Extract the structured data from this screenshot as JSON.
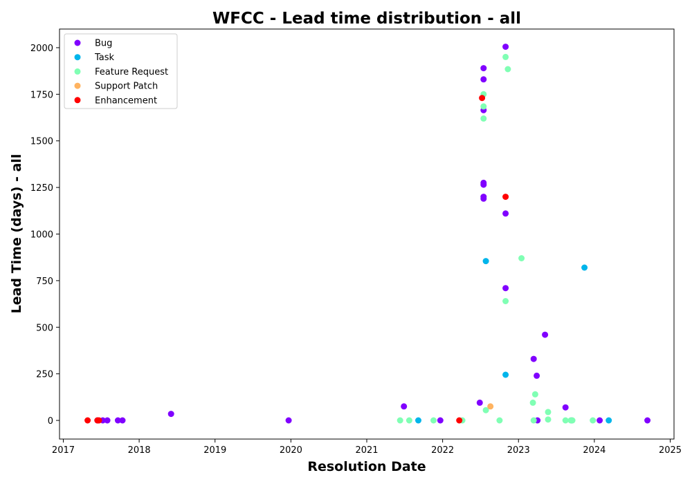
{
  "chart_data": {
    "type": "scatter",
    "title": "WFCC - Lead time distribution - all",
    "xlabel": "Resolution Date",
    "ylabel": "Lead Time (days) - all",
    "xlim": [
      2016.95,
      2025.05
    ],
    "ylim": [
      -100,
      2100
    ],
    "x_ticks": [
      "2017",
      "2018",
      "2019",
      "2020",
      "2021",
      "2022",
      "2023",
      "2024",
      "2025"
    ],
    "y_ticks": [
      "0",
      "250",
      "500",
      "750",
      "1000",
      "1250",
      "1500",
      "1750",
      "2000"
    ],
    "grid": false,
    "legend_position": "upper-left",
    "series": [
      {
        "name": "Bug",
        "color": "#8000ff",
        "points": [
          [
            2017.45,
            0
          ],
          [
            2017.52,
            0
          ],
          [
            2017.58,
            0
          ],
          [
            2017.72,
            0
          ],
          [
            2017.78,
            0
          ],
          [
            2018.42,
            35
          ],
          [
            2019.97,
            0
          ],
          [
            2021.49,
            75
          ],
          [
            2021.97,
            0
          ],
          [
            2022.49,
            95
          ],
          [
            2022.54,
            1890
          ],
          [
            2022.54,
            1830
          ],
          [
            2022.54,
            1665
          ],
          [
            2022.54,
            1275
          ],
          [
            2022.54,
            1265
          ],
          [
            2022.54,
            1200
          ],
          [
            2022.54,
            1190
          ],
          [
            2022.83,
            2005
          ],
          [
            2022.83,
            1110
          ],
          [
            2022.83,
            710
          ],
          [
            2023.2,
            330
          ],
          [
            2023.24,
            240
          ],
          [
            2023.25,
            0
          ],
          [
            2023.35,
            460
          ],
          [
            2023.62,
            70
          ],
          [
            2023.7,
            0
          ],
          [
            2024.07,
            0
          ],
          [
            2024.7,
            0
          ]
        ]
      },
      {
        "name": "Task",
        "color": "#00b5eb",
        "points": [
          [
            2021.68,
            0
          ],
          [
            2022.57,
            855
          ],
          [
            2022.83,
            245
          ],
          [
            2023.87,
            820
          ],
          [
            2024.19,
            0
          ]
        ]
      },
      {
        "name": "Feature Request",
        "color": "#80ffb4",
        "points": [
          [
            2021.44,
            0
          ],
          [
            2021.56,
            0
          ],
          [
            2021.88,
            0
          ],
          [
            2022.26,
            0
          ],
          [
            2022.54,
            1750
          ],
          [
            2022.54,
            1685
          ],
          [
            2022.54,
            1620
          ],
          [
            2022.57,
            55
          ],
          [
            2022.75,
            0
          ],
          [
            2022.83,
            1950
          ],
          [
            2022.83,
            640
          ],
          [
            2022.86,
            1885
          ],
          [
            2023.04,
            870
          ],
          [
            2023.19,
            95
          ],
          [
            2023.2,
            0
          ],
          [
            2023.22,
            140
          ],
          [
            2023.39,
            45
          ],
          [
            2023.39,
            5
          ],
          [
            2023.62,
            0
          ],
          [
            2023.69,
            0
          ],
          [
            2023.71,
            0
          ],
          [
            2023.98,
            0
          ]
        ]
      },
      {
        "name": "Support Patch",
        "color": "#ffb360",
        "points": [
          [
            2022.63,
            75
          ]
        ]
      },
      {
        "name": "Enhancement",
        "color": "#ff0000",
        "points": [
          [
            2017.32,
            0
          ],
          [
            2017.45,
            0
          ],
          [
            2017.47,
            0
          ],
          [
            2022.22,
            0
          ],
          [
            2022.52,
            1730
          ],
          [
            2022.83,
            1200
          ]
        ]
      }
    ]
  }
}
